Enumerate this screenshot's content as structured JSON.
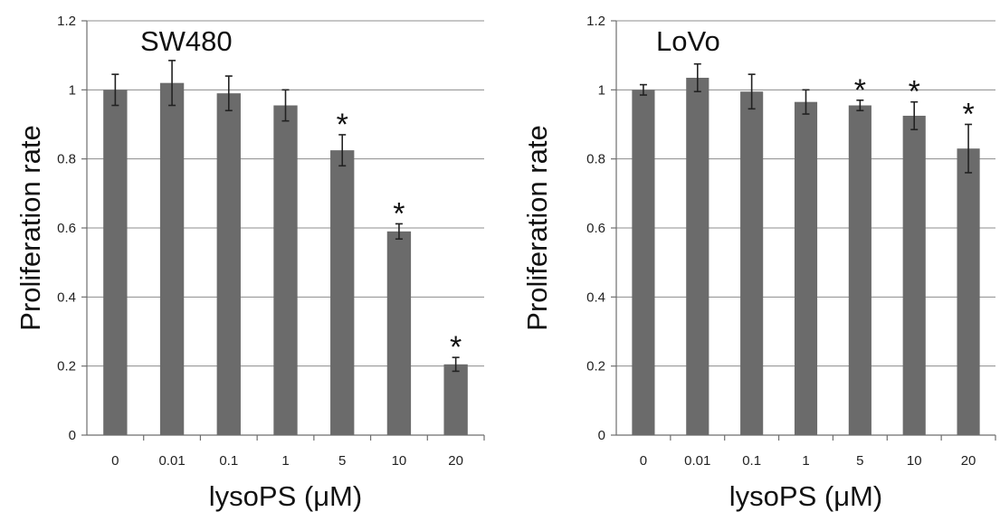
{
  "chart_data": [
    {
      "type": "bar",
      "title": "SW480",
      "xlabel": "lysoPS (μM)",
      "ylabel": "Proliferation rate",
      "categories": [
        "0",
        "0.01",
        "0.1",
        "1",
        "5",
        "10",
        "20"
      ],
      "values": [
        1.0,
        1.02,
        0.99,
        0.955,
        0.825,
        0.59,
        0.205
      ],
      "errors": [
        0.045,
        0.065,
        0.05,
        0.045,
        0.045,
        0.022,
        0.02
      ],
      "significance": [
        "",
        "",
        "",
        "",
        "*",
        "*",
        "*"
      ],
      "ylim": [
        0,
        1.2
      ],
      "yticks": [
        "0",
        "0.2",
        "0.4",
        "0.6",
        "0.8",
        "1",
        "1.2"
      ],
      "grid": true,
      "bar_color": "#6b6b6b"
    },
    {
      "type": "bar",
      "title": "LoVo",
      "xlabel": "lysoPS (μM)",
      "ylabel": "Proliferation rate",
      "categories": [
        "0",
        "0.01",
        "0.1",
        "1",
        "5",
        "10",
        "20"
      ],
      "values": [
        1.0,
        1.035,
        0.995,
        0.965,
        0.955,
        0.925,
        0.83
      ],
      "errors": [
        0.015,
        0.04,
        0.05,
        0.035,
        0.015,
        0.04,
        0.07
      ],
      "significance": [
        "",
        "",
        "",
        "",
        "*",
        "*",
        "*"
      ],
      "ylim": [
        0,
        1.2
      ],
      "yticks": [
        "0",
        "0.2",
        "0.4",
        "0.6",
        "0.8",
        "1",
        "1.2"
      ],
      "grid": true,
      "bar_color": "#6b6b6b"
    }
  ]
}
